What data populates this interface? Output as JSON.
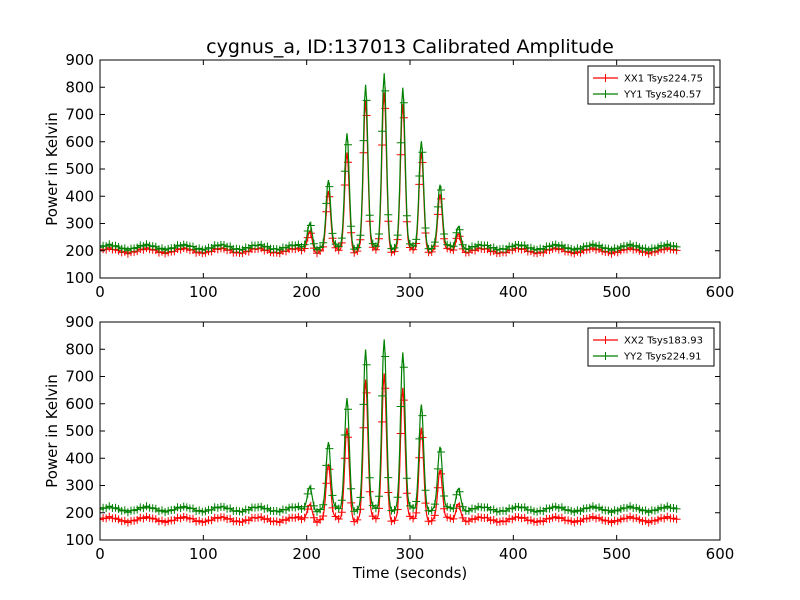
{
  "title": "cygnus_a, ID:137013 Calibrated Amplitude",
  "xlabel": "Time (seconds)",
  "colors": {
    "xx": "#ff0000",
    "yy": "#008000"
  },
  "chart_data": [
    {
      "type": "line",
      "ylabel": "Power in Kelvin",
      "xlim": [
        0,
        600
      ],
      "ylim": [
        100,
        900
      ],
      "xticks": [
        0,
        100,
        200,
        300,
        400,
        500,
        600
      ],
      "yticks": [
        100,
        200,
        300,
        400,
        500,
        600,
        700,
        800,
        900
      ],
      "grid": false,
      "legend_position": "upper right",
      "x_range": [
        0,
        558
      ],
      "sample_step": 3,
      "baseline_ripple_period": 36,
      "series": [
        {
          "name": "XX1 Tsys224.75",
          "color": "#ff0000",
          "marker": "+",
          "baseline": 200,
          "peaks": [
            [
              203,
              280
            ],
            [
              221,
              410
            ],
            [
              239,
              570
            ],
            [
              257,
              740
            ],
            [
              275,
              790
            ],
            [
              293,
              730
            ],
            [
              311,
              570
            ],
            [
              329,
              400
            ],
            [
              347,
              270
            ]
          ]
        },
        {
          "name": "YY1 Tsys240.57",
          "color": "#008000",
          "marker": "+",
          "baseline": 213,
          "peaks": [
            [
              203,
              310
            ],
            [
              221,
              450
            ],
            [
              239,
              640
            ],
            [
              257,
              800
            ],
            [
              275,
              860
            ],
            [
              293,
              790
            ],
            [
              311,
              610
            ],
            [
              329,
              435
            ],
            [
              347,
              295
            ]
          ]
        }
      ]
    },
    {
      "type": "line",
      "ylabel": "Power in Kelvin",
      "xlim": [
        0,
        600
      ],
      "ylim": [
        100,
        900
      ],
      "xticks": [
        0,
        100,
        200,
        300,
        400,
        500,
        600
      ],
      "yticks": [
        100,
        200,
        300,
        400,
        500,
        600,
        700,
        800,
        900
      ],
      "grid": false,
      "legend_position": "upper right",
      "x_range": [
        0,
        558
      ],
      "sample_step": 3,
      "baseline_ripple_period": 36,
      "series": [
        {
          "name": "XX2 Tsys183.93",
          "color": "#ff0000",
          "marker": "+",
          "baseline": 175,
          "peaks": [
            [
              203,
              240
            ],
            [
              221,
              370
            ],
            [
              239,
              520
            ],
            [
              257,
              680
            ],
            [
              275,
              720
            ],
            [
              293,
              650
            ],
            [
              311,
              520
            ],
            [
              329,
              350
            ],
            [
              347,
              240
            ]
          ]
        },
        {
          "name": "YY2 Tsys224.91",
          "color": "#008000",
          "marker": "+",
          "baseline": 213,
          "peaks": [
            [
              203,
              305
            ],
            [
              221,
              450
            ],
            [
              239,
              630
            ],
            [
              257,
              790
            ],
            [
              275,
              845
            ],
            [
              293,
              780
            ],
            [
              311,
              605
            ],
            [
              329,
              435
            ],
            [
              347,
              295
            ]
          ]
        }
      ]
    }
  ]
}
